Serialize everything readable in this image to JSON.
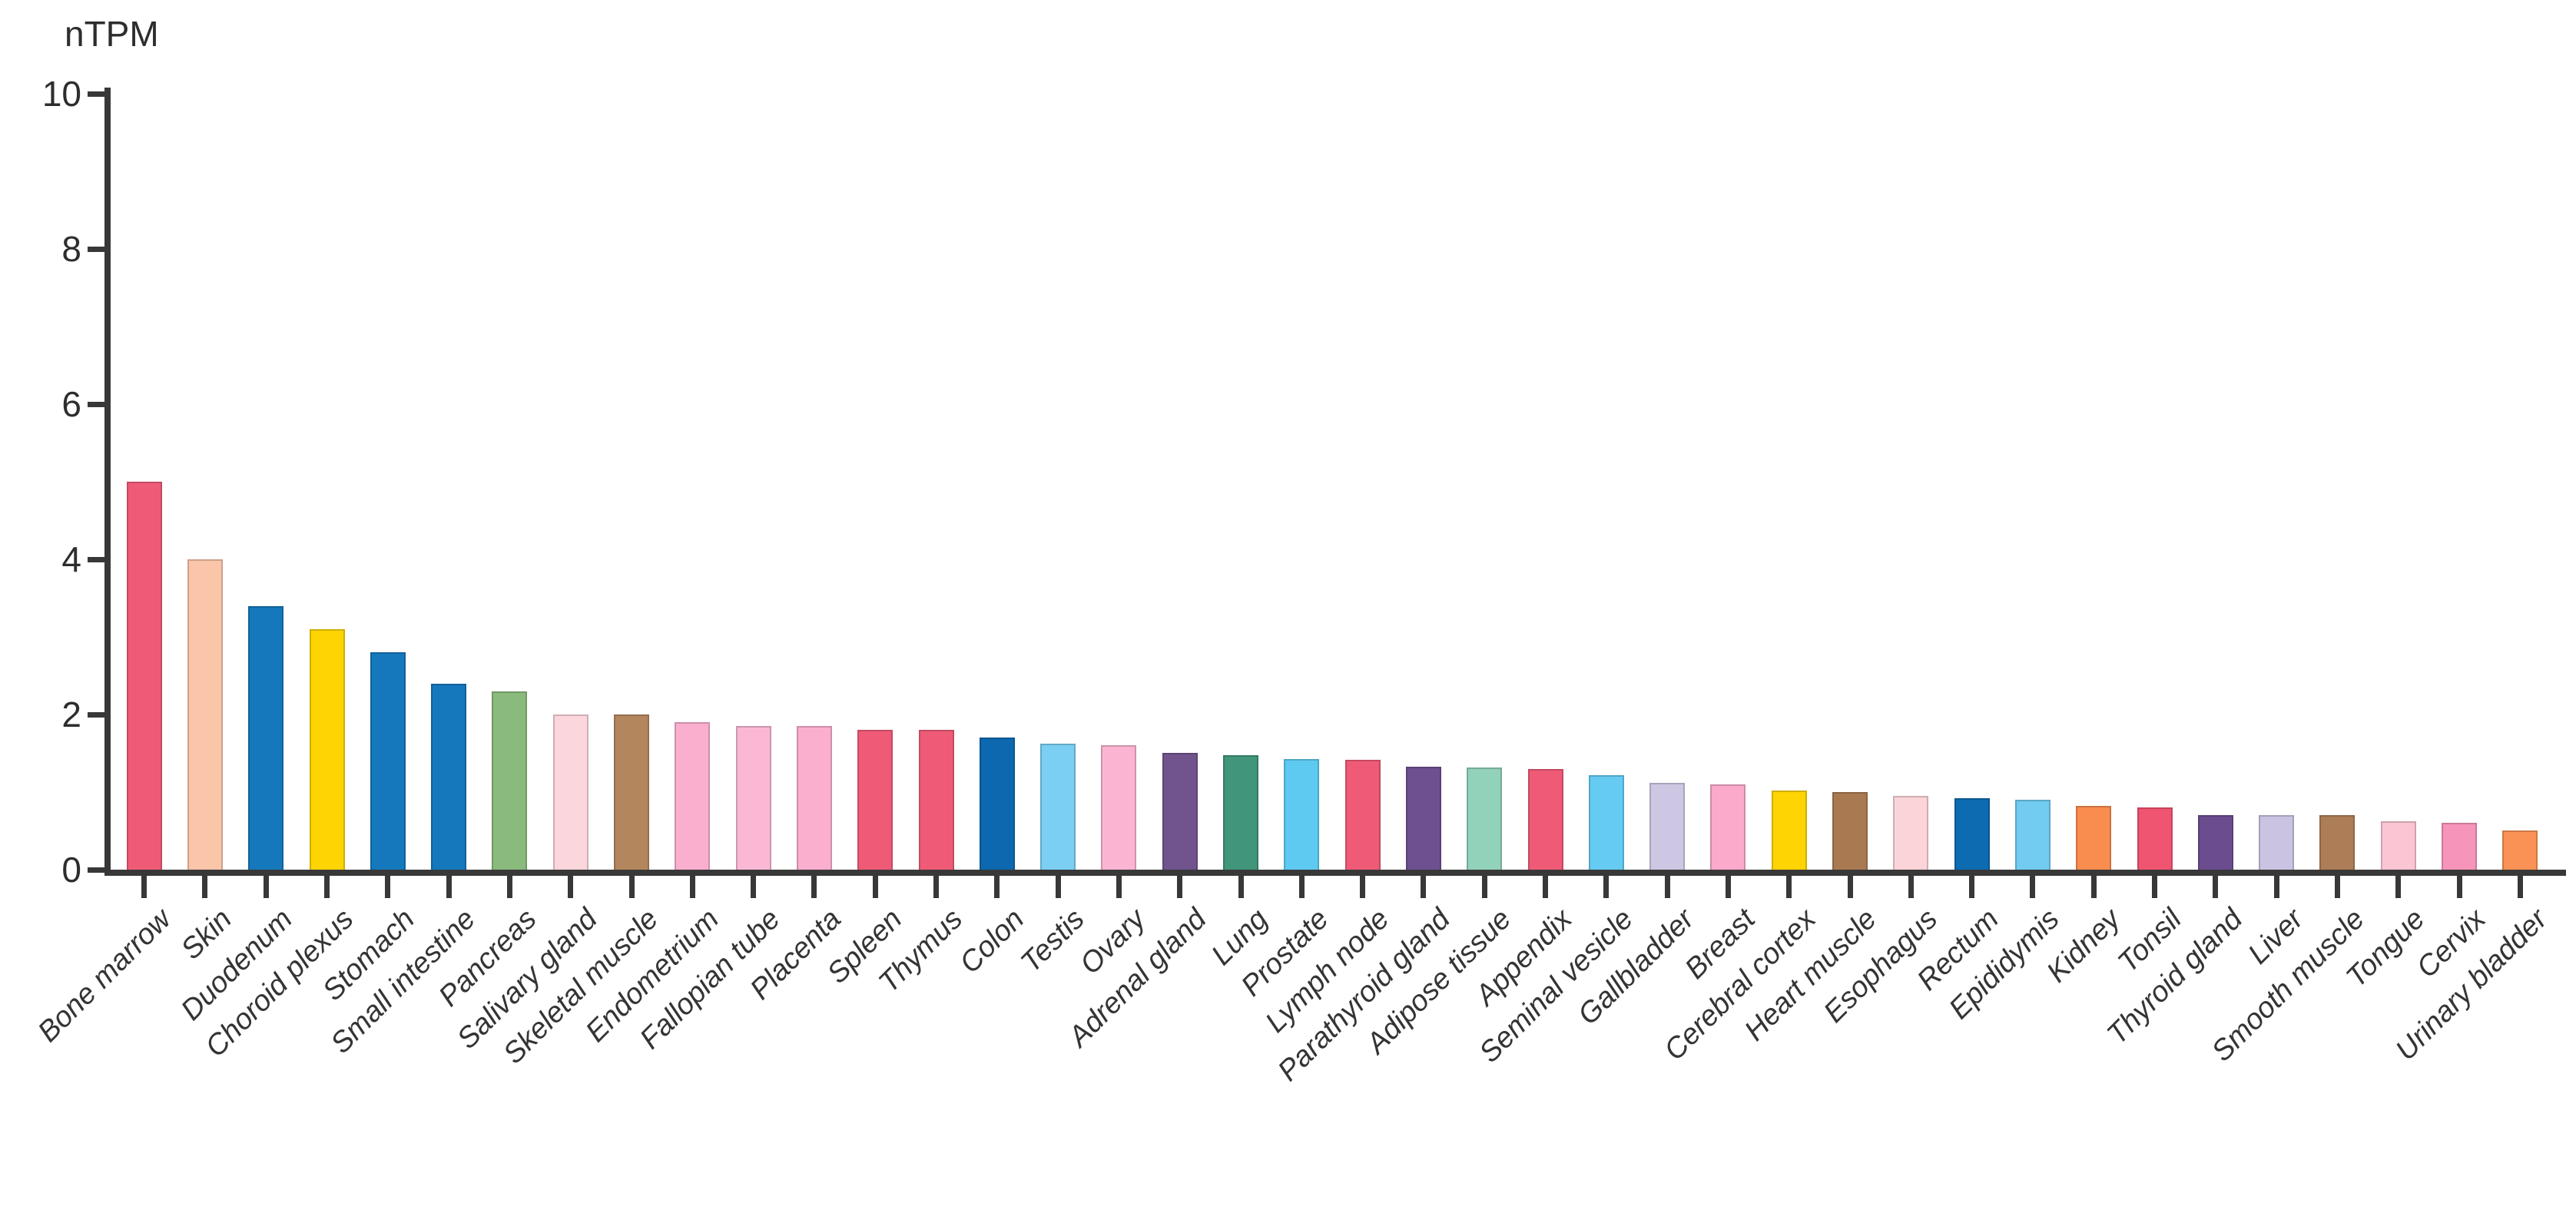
{
  "figure": {
    "background": "#ffffff",
    "axis_color": "#383838",
    "text_color": "#2f2f2f"
  },
  "chart_data": {
    "type": "bar",
    "title": "",
    "ylabel": "nTPM",
    "xlabel": "",
    "ylim": [
      0,
      10
    ],
    "yticks": [
      0,
      2,
      4,
      6,
      8,
      10
    ],
    "grid": false,
    "legend": false,
    "bar_orientation": "vertical",
    "sort_order": "descending",
    "categories": [
      "Bone marrow",
      "Skin",
      "Duodenum",
      "Choroid plexus",
      "Stomach",
      "Small intestine",
      "Pancreas",
      "Salivary gland",
      "Skeletal muscle",
      "Endometrium",
      "Fallopian tube",
      "Placenta",
      "Spleen",
      "Thymus",
      "Colon",
      "Testis",
      "Ovary",
      "Adrenal gland",
      "Lung",
      "Prostate",
      "Lymph node",
      "Parathyroid gland",
      "Adipose tissue",
      "Appendix",
      "Seminal vesicle",
      "Gallbladder",
      "Breast",
      "Cerebral cortex",
      "Heart muscle",
      "Esophagus",
      "Rectum",
      "Epididymis",
      "Kidney",
      "Tonsil",
      "Thyroid gland",
      "Liver",
      "Smooth muscle",
      "Tongue",
      "Cervix",
      "Urinary bladder"
    ],
    "values": [
      5.0,
      4.0,
      3.4,
      3.1,
      2.8,
      2.4,
      2.3,
      2.0,
      2.0,
      1.9,
      1.85,
      1.85,
      1.8,
      1.8,
      1.7,
      1.62,
      1.6,
      1.5,
      1.48,
      1.43,
      1.42,
      1.33,
      1.32,
      1.3,
      1.22,
      1.12,
      1.1,
      1.02,
      1.0,
      0.95,
      0.92,
      0.9,
      0.82,
      0.8,
      0.7,
      0.7,
      0.7,
      0.62,
      0.6,
      0.5
    ],
    "colors": [
      "#ef5b77",
      "#fac5a9",
      "#1578bc",
      "#fed402",
      "#1578bc",
      "#1578bc",
      "#8aba7c",
      "#fbd6dc",
      "#b4865e",
      "#fbafcf",
      "#fbb8d5",
      "#fbafcf",
      "#ef5b77",
      "#ef5b77",
      "#0d68af",
      "#7bcff2",
      "#fbb4d2",
      "#71538e",
      "#40957a",
      "#5ecaf2",
      "#ef5b77",
      "#6e4f90",
      "#92d1ba",
      "#ef5b77",
      "#65cbf2",
      "#cec7e3",
      "#fbaacc",
      "#fed402",
      "#a97a52",
      "#fbd4d9",
      "#0d6bb1",
      "#72cbf0",
      "#f98c4f",
      "#ef5470",
      "#6b4d8f",
      "#cac3e1",
      "#ac7d56",
      "#fbc5d4",
      "#f694ba",
      "#f99254"
    ]
  }
}
